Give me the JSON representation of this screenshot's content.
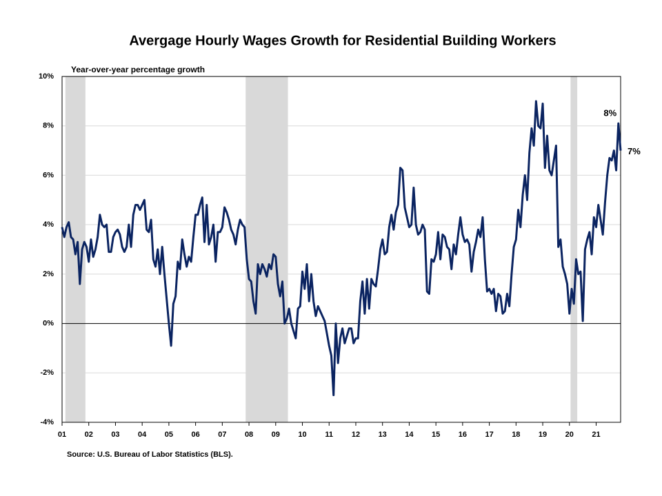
{
  "chart_data": {
    "type": "line",
    "title": "Avergage Hourly Wages Growth for Residential Building Workers",
    "subtitle": "Year-over-year percentage growth",
    "source": "Source: U.S. Bureau of Labor Statistics (BLS).",
    "color": "#0b2461",
    "categories": [
      "01",
      null,
      null,
      null,
      null,
      null,
      null,
      null,
      null,
      null,
      null,
      null,
      "02",
      null,
      null,
      null,
      null,
      null,
      null,
      null,
      null,
      null,
      null,
      null,
      "03",
      null,
      null,
      null,
      null,
      null,
      null,
      null,
      null,
      null,
      null,
      null,
      "04",
      null,
      null,
      null,
      null,
      null,
      null,
      null,
      null,
      null,
      null,
      null,
      "05",
      null,
      null,
      null,
      null,
      null,
      null,
      null,
      null,
      null,
      null,
      null,
      "06",
      null,
      null,
      null,
      null,
      null,
      null,
      null,
      null,
      null,
      null,
      null,
      "07",
      null,
      null,
      null,
      null,
      null,
      null,
      null,
      null,
      null,
      null,
      null,
      "08",
      null,
      null,
      null,
      null,
      null,
      null,
      null,
      null,
      null,
      null,
      null,
      "09",
      null,
      null,
      null,
      null,
      null,
      null,
      null,
      null,
      null,
      null,
      null,
      "10",
      null,
      null,
      null,
      null,
      null,
      null,
      null,
      null,
      null,
      null,
      null,
      "11",
      null,
      null,
      null,
      null,
      null,
      null,
      null,
      null,
      null,
      null,
      null,
      "12",
      null,
      null,
      null,
      null,
      null,
      null,
      null,
      null,
      null,
      null,
      null,
      "13",
      null,
      null,
      null,
      null,
      null,
      null,
      null,
      null,
      null,
      null,
      null,
      "14",
      null,
      null,
      null,
      null,
      null,
      null,
      null,
      null,
      null,
      null,
      null,
      "15",
      null,
      null,
      null,
      null,
      null,
      null,
      null,
      null,
      null,
      null,
      null,
      "16",
      null,
      null,
      null,
      null,
      null,
      null,
      null,
      null,
      null,
      null,
      null,
      "17",
      null,
      null,
      null,
      null,
      null,
      null,
      null,
      null,
      null,
      null,
      null,
      "18",
      null,
      null,
      null,
      null,
      null,
      null,
      null,
      null,
      null,
      null,
      null,
      "19",
      null,
      null,
      null,
      null,
      null,
      null,
      null,
      null,
      null,
      null,
      null,
      "20",
      null,
      null,
      null,
      null,
      null,
      null,
      null,
      null,
      null,
      null,
      null,
      "21",
      null,
      null,
      null,
      null,
      null,
      null,
      null,
      null,
      null,
      null,
      null
    ],
    "values": [
      3.9,
      3.5,
      3.9,
      4.1,
      3.5,
      3.4,
      2.8,
      3.3,
      1.6,
      3.0,
      3.3,
      3.1,
      2.5,
      3.4,
      2.7,
      3.0,
      3.5,
      4.4,
      4.0,
      3.9,
      4.0,
      2.9,
      2.9,
      3.5,
      3.7,
      3.8,
      3.6,
      3.1,
      2.9,
      3.1,
      4.0,
      3.1,
      4.4,
      4.8,
      4.8,
      4.6,
      4.8,
      5.0,
      3.8,
      3.7,
      4.2,
      2.6,
      2.3,
      3.0,
      2.0,
      3.1,
      2.0,
      1.0,
      0.0,
      -0.9,
      0.8,
      1.1,
      2.5,
      2.2,
      3.4,
      2.8,
      2.3,
      2.7,
      2.5,
      3.5,
      4.4,
      4.4,
      4.8,
      5.1,
      3.3,
      4.8,
      3.2,
      3.5,
      4.0,
      2.5,
      3.7,
      3.7,
      3.9,
      4.7,
      4.5,
      4.2,
      3.8,
      3.6,
      3.2,
      3.8,
      4.2,
      4.0,
      3.9,
      2.6,
      1.8,
      1.7,
      0.9,
      0.4,
      2.4,
      2.0,
      2.4,
      2.2,
      1.9,
      2.4,
      2.2,
      2.8,
      2.7,
      1.6,
      1.1,
      1.7,
      0.0,
      0.2,
      0.6,
      0.0,
      -0.3,
      -0.6,
      0.6,
      0.7,
      2.1,
      1.4,
      2.4,
      0.9,
      2.0,
      0.9,
      0.3,
      0.7,
      0.5,
      0.3,
      0.1,
      -0.4,
      -0.9,
      -1.3,
      -2.9,
      0.0,
      -1.6,
      -0.6,
      -0.2,
      -0.8,
      -0.5,
      -0.2,
      -0.2,
      -0.8,
      -0.6,
      -0.6,
      0.9,
      1.7,
      0.4,
      1.8,
      0.6,
      1.8,
      1.6,
      1.5,
      2.2,
      3.0,
      3.4,
      2.8,
      2.9,
      3.9,
      4.4,
      3.8,
      4.5,
      4.8,
      6.3,
      6.2,
      4.7,
      4.3,
      3.9,
      4.0,
      5.5,
      4.0,
      3.6,
      3.7,
      4.0,
      3.8,
      1.3,
      1.2,
      2.6,
      2.5,
      2.8,
      3.7,
      2.6,
      3.6,
      3.5,
      3.1,
      3.0,
      2.2,
      3.2,
      2.8,
      3.6,
      4.3,
      3.6,
      3.3,
      3.4,
      3.2,
      2.1,
      2.9,
      3.3,
      3.8,
      3.5,
      4.3,
      2.6,
      1.3,
      1.4,
      1.2,
      1.4,
      0.5,
      1.2,
      1.1,
      0.4,
      0.5,
      1.2,
      0.7,
      2.0,
      3.1,
      3.4,
      4.6,
      3.9,
      5.2,
      6.0,
      5.0,
      6.9,
      7.9,
      7.2,
      9.0,
      8.0,
      7.9,
      8.9,
      6.3,
      7.6,
      6.2,
      6.0,
      6.6,
      7.2,
      3.1,
      3.4,
      2.3,
      2.0,
      1.6,
      0.4,
      1.4,
      0.8,
      2.6,
      2.0,
      2.1,
      0.1,
      3.0,
      3.4,
      3.7,
      2.8,
      4.3,
      3.9,
      4.8,
      4.2,
      3.6,
      4.9,
      6.0,
      6.7,
      6.6,
      7.0,
      6.2,
      8.1,
      7.0
    ],
    "recessions": [
      [
        2,
        10
      ],
      [
        83,
        101
      ],
      [
        229,
        231
      ]
    ],
    "annotations": [
      {
        "label": "8%",
        "index": 250
      },
      {
        "label": "7%",
        "index": 251
      }
    ],
    "ylim": [
      -4,
      10
    ],
    "yticks": [
      {
        "value": -4,
        "label": "-4%"
      },
      {
        "value": -2,
        "label": "-2%"
      },
      {
        "value": 0,
        "label": "0%"
      },
      {
        "value": 2,
        "label": "2%"
      },
      {
        "value": 4,
        "label": "4%"
      },
      {
        "value": 6,
        "label": "6%"
      },
      {
        "value": 8,
        "label": "8%"
      },
      {
        "value": 10,
        "label": "10%"
      }
    ],
    "grid": true
  }
}
